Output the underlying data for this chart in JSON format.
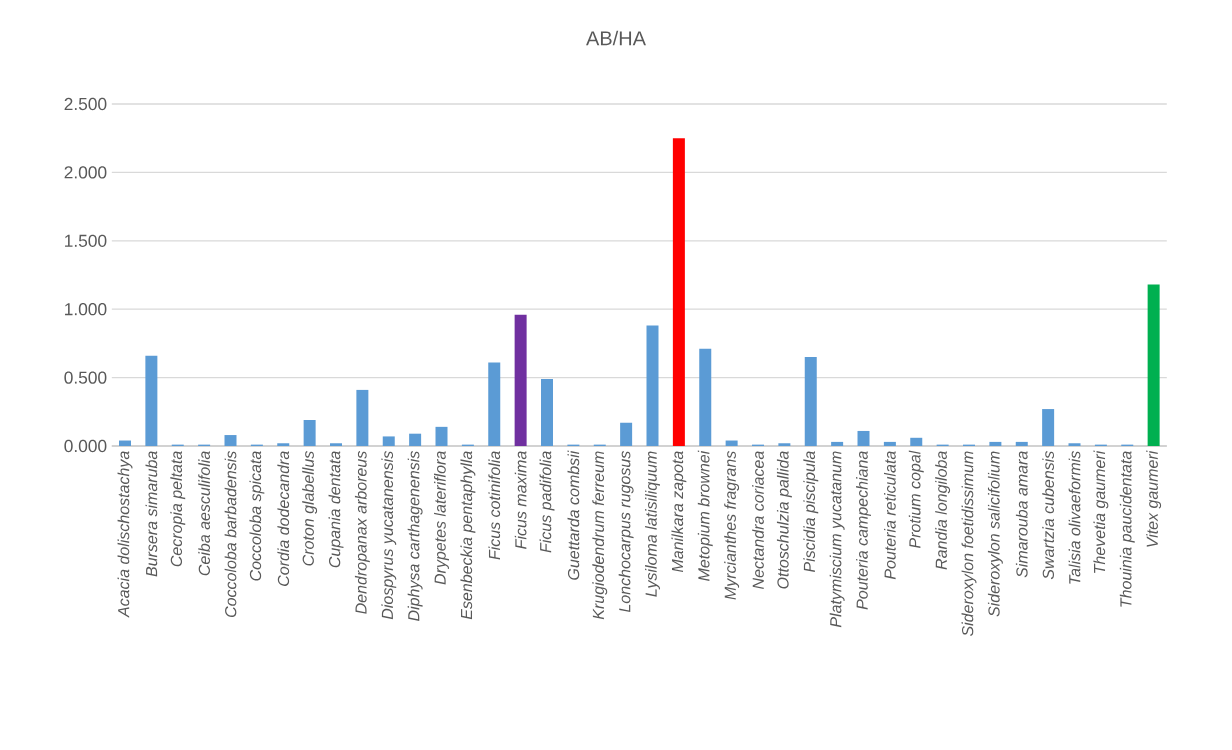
{
  "chart_data": {
    "type": "bar",
    "title": "AB/HA",
    "categories": [
      "Acacia dolischostachya",
      "Bursera simaruba",
      "Cecropia peltata",
      "Ceiba aesculifolia",
      "Coccoloba barbadensis",
      "Coccoloba spicata",
      "Cordia dodecandra",
      "Croton glabellus",
      "Cupania dentata",
      "Dendropanax arboreus",
      "Diospyrus yucatanensis",
      "Diphysa carthagenensis",
      "Drypetes lateriflora",
      "Esenbeckia pentaphylla",
      "Ficus cotinifolia",
      "Ficus maxima",
      "Ficus padifolia",
      "Guettarda combsii",
      "Krugiodendrum ferreum",
      "Lonchocarpus rugosus",
      "Lysiloma latisiliquum",
      "Manilkara zapota",
      "Metopium brownei",
      "Myrcianthes fragrans",
      "Nectandra coriacea",
      "Ottoschulzia pallida",
      "Piscidia piscipula",
      "Platymiscium yucatanum",
      "Pouteria campechiana",
      "Pouteria reticulata",
      "Protium copal",
      "Randia longiloba",
      "Sideroxylon foetidissimum",
      "Sideroxylon salicifolium",
      "Simarouba amara",
      "Swartzia cubensis",
      "Talisia olivaeformis",
      "Thevetia gaumeri",
      "Thouinia paucidentata",
      "Vitex gaumeri"
    ],
    "values": [
      0.04,
      0.66,
      0.01,
      0.01,
      0.08,
      0.01,
      0.02,
      0.19,
      0.02,
      0.41,
      0.07,
      0.09,
      0.14,
      0.01,
      0.61,
      0.96,
      0.49,
      0.01,
      0.01,
      0.17,
      0.88,
      2.25,
      0.71,
      0.04,
      0.01,
      0.02,
      0.65,
      0.03,
      0.11,
      0.03,
      0.06,
      0.01,
      0.01,
      0.03,
      0.03,
      0.27,
      0.02,
      0.01,
      0.01,
      1.18
    ],
    "colors": [
      "#5b9bd5",
      "#5b9bd5",
      "#5b9bd5",
      "#5b9bd5",
      "#5b9bd5",
      "#5b9bd5",
      "#5b9bd5",
      "#5b9bd5",
      "#5b9bd5",
      "#5b9bd5",
      "#5b9bd5",
      "#5b9bd5",
      "#5b9bd5",
      "#5b9bd5",
      "#5b9bd5",
      "#7030a0",
      "#5b9bd5",
      "#5b9bd5",
      "#5b9bd5",
      "#5b9bd5",
      "#5b9bd5",
      "#ff0000",
      "#5b9bd5",
      "#5b9bd5",
      "#5b9bd5",
      "#5b9bd5",
      "#5b9bd5",
      "#5b9bd5",
      "#5b9bd5",
      "#5b9bd5",
      "#5b9bd5",
      "#5b9bd5",
      "#5b9bd5",
      "#5b9bd5",
      "#5b9bd5",
      "#5b9bd5",
      "#5b9bd5",
      "#5b9bd5",
      "#5b9bd5",
      "#00b050"
    ],
    "ylim": [
      0,
      2.5
    ],
    "yticks": [
      {
        "value": 0,
        "label": "0.000"
      },
      {
        "value": 0.5,
        "label": "0.500"
      },
      {
        "value": 1,
        "label": "1.000"
      },
      {
        "value": 1.5,
        "label": "1.500"
      },
      {
        "value": 2,
        "label": "2.000"
      },
      {
        "value": 2.5,
        "label": "2.500"
      }
    ],
    "grid": "y"
  }
}
